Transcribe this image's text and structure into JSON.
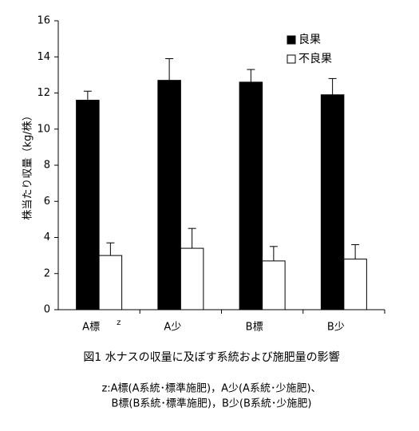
{
  "chart_data": {
    "type": "bar",
    "caption": "図1  水ナスの収量に及ぼす系統および施肥量の影響",
    "notes": [
      "z:A標(A系統･標準施肥)，A少(A系統･少施肥)、",
      "B標(B系統･標準施肥)，B少(B系統･少施肥)"
    ],
    "y_label": "株当たり収量（kg/株）",
    "categories": [
      "A標",
      "A少",
      "B標",
      "B少"
    ],
    "category_superscript": "z",
    "series": [
      {
        "name": "良果",
        "color": "#000000",
        "values": [
          11.6,
          12.7,
          12.6,
          11.9
        ],
        "errors": [
          0.5,
          1.2,
          0.7,
          0.9
        ]
      },
      {
        "name": "不良果",
        "color": "#ffffff",
        "values": [
          3.0,
          3.4,
          2.7,
          2.8
        ],
        "errors": [
          0.7,
          1.1,
          0.8,
          0.8
        ]
      }
    ],
    "ylim": [
      0,
      16
    ],
    "yticks": [
      0,
      2,
      4,
      6,
      8,
      10,
      12,
      14,
      16
    ],
    "legend": "upper right",
    "grid": false
  }
}
